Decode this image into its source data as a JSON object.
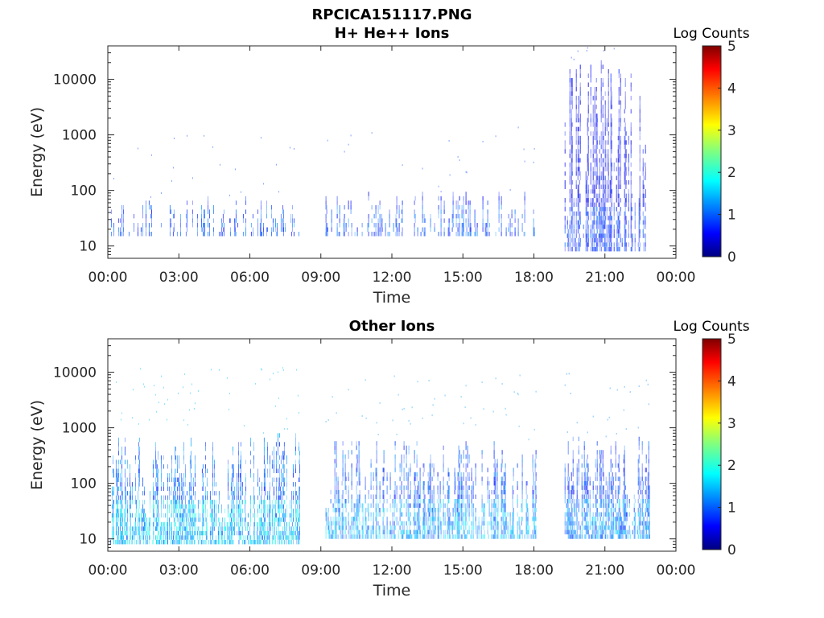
{
  "figure_title": "RPCICA151117.PNG",
  "chart_data": [
    {
      "type": "heatmap",
      "title": "H+ He++ Ions",
      "xlabel": "Time",
      "ylabel": "Energy (eV)",
      "xlim": [
        "00:00",
        "24:00"
      ],
      "x_ticks": [
        "00:00",
        "03:00",
        "06:00",
        "09:00",
        "12:00",
        "15:00",
        "18:00",
        "21:00",
        "00:00"
      ],
      "ylim": [
        6,
        40000
      ],
      "y_scale": "log",
      "y_ticks": [
        "10",
        "100",
        "1000",
        "10000"
      ],
      "colorbar_label": "Log Counts",
      "colorbar_ticks": [
        "0",
        "1",
        "2",
        "3",
        "4",
        "5"
      ],
      "colorbar_range": [
        0,
        5
      ],
      "colormap": "jet",
      "segments": [
        {
          "start_hour": 0.1,
          "end_hour": 8.1,
          "emin": 15,
          "emax": 70,
          "level": 0.9,
          "sparse": 0.35
        },
        {
          "start_hour": 9.2,
          "end_hour": 18.1,
          "emin": 15,
          "emax": 90,
          "level": 0.9,
          "sparse": 0.35
        },
        {
          "start_hour": 19.3,
          "end_hour": 22.9,
          "emin": 8,
          "emax": 20000,
          "level": 0.8,
          "sparse": 0.6
        }
      ]
    },
    {
      "type": "heatmap",
      "title": "Other Ions",
      "xlabel": "Time",
      "ylabel": "Energy (eV)",
      "xlim": [
        "00:00",
        "24:00"
      ],
      "x_ticks": [
        "00:00",
        "03:00",
        "06:00",
        "09:00",
        "12:00",
        "15:00",
        "18:00",
        "21:00",
        "00:00"
      ],
      "ylim": [
        6,
        40000
      ],
      "y_scale": "log",
      "y_ticks": [
        "10",
        "100",
        "1000",
        "10000"
      ],
      "colorbar_label": "Log Counts",
      "colorbar_ticks": [
        "0",
        "1",
        "2",
        "3",
        "4",
        "5"
      ],
      "colorbar_range": [
        0,
        5
      ],
      "colormap": "jet",
      "segments": [
        {
          "start_hour": 0.1,
          "end_hour": 8.1,
          "emin": 8,
          "emax": 800,
          "level": 1.5,
          "sparse": 0.85
        },
        {
          "start_hour": 9.2,
          "end_hour": 18.1,
          "emin": 10,
          "emax": 600,
          "level": 1.3,
          "sparse": 0.7
        },
        {
          "start_hour": 19.3,
          "end_hour": 22.9,
          "emin": 10,
          "emax": 700,
          "level": 1.2,
          "sparse": 0.85
        }
      ]
    }
  ]
}
